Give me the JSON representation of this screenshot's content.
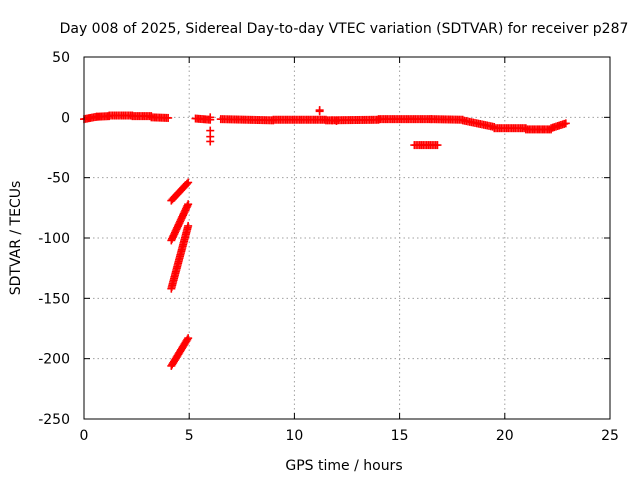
{
  "chart_data": {
    "type": "scatter",
    "title": "Day 008 of 2025, Sidereal Day-to-day VTEC variation (SDTVAR) for receiver p287",
    "xlabel": "GPS time / hours",
    "ylabel": "SDTVAR / TECUs",
    "xlim": [
      0,
      25
    ],
    "ylim": [
      -250,
      50
    ],
    "xticks": [
      0,
      5,
      10,
      15,
      20,
      25
    ],
    "yticks": [
      50,
      0,
      -50,
      -100,
      -150,
      -200,
      -250
    ],
    "xtick_labels": [
      "0",
      "5",
      "10",
      "15",
      "20",
      "25"
    ],
    "ytick_labels": [
      "50",
      "0",
      "-50",
      "-100",
      "-150",
      "-200",
      "-250"
    ],
    "grid": true,
    "marker": "+",
    "series_color": "#ff0000",
    "series": [
      {
        "name": "SDTVAR",
        "segments": [
          {
            "x0": 0.0,
            "x1": 0.6,
            "y0": -1.5,
            "y1": 0.5
          },
          {
            "x0": 0.6,
            "x1": 1.2,
            "y0": 0.5,
            "y1": 1.0
          },
          {
            "x0": 1.2,
            "x1": 2.3,
            "y0": 1.5,
            "y1": 1.5
          },
          {
            "x0": 2.3,
            "x1": 3.2,
            "y0": 1.0,
            "y1": 1.0
          },
          {
            "x0": 3.2,
            "x1": 4.0,
            "y0": 0.0,
            "y1": -0.5
          },
          {
            "x0": 4.15,
            "x1": 4.95,
            "y0": -69,
            "y1": -54
          },
          {
            "x0": 4.15,
            "x1": 4.95,
            "y0": -102,
            "y1": -72
          },
          {
            "x0": 4.15,
            "x1": 4.95,
            "y0": -142,
            "y1": -90
          },
          {
            "x0": 4.15,
            "x1": 4.95,
            "y0": -206,
            "y1": -183
          },
          {
            "x0": 5.3,
            "x1": 6.0,
            "y0": -1.0,
            "y1": -2.0
          },
          {
            "x0": 6.5,
            "x1": 9.0,
            "y0": -1.5,
            "y1": -2.5
          },
          {
            "x0": 9.0,
            "x1": 11.5,
            "y0": -2.0,
            "y1": -2.0
          },
          {
            "x0": 11.5,
            "x1": 14.0,
            "y0": -2.5,
            "y1": -2.0
          },
          {
            "x0": 14.0,
            "x1": 16.5,
            "y0": -1.5,
            "y1": -1.5
          },
          {
            "x0": 16.5,
            "x1": 18.0,
            "y0": -1.5,
            "y1": -2.0
          },
          {
            "x0": 18.0,
            "x1": 19.5,
            "y0": -2.5,
            "y1": -8.0
          },
          {
            "x0": 19.5,
            "x1": 21.0,
            "y0": -9.0,
            "y1": -9.0
          },
          {
            "x0": 21.0,
            "x1": 22.2,
            "y0": -10.0,
            "y1": -10.0
          },
          {
            "x0": 22.2,
            "x1": 22.9,
            "y0": -9.0,
            "y1": -5.0
          },
          {
            "x0": 15.7,
            "x1": 16.8,
            "y0": -23.0,
            "y1": -23.0
          }
        ],
        "points": [
          {
            "x": 6.0,
            "y": 0.0
          },
          {
            "x": 6.0,
            "y": -11
          },
          {
            "x": 6.0,
            "y": -16
          },
          {
            "x": 6.0,
            "y": -20
          },
          {
            "x": 11.2,
            "y": 5
          },
          {
            "x": 11.2,
            "y": 6
          },
          {
            "x": 11.8,
            "y": -2.5
          },
          {
            "x": 12.0,
            "y": -3.0
          }
        ]
      }
    ]
  }
}
